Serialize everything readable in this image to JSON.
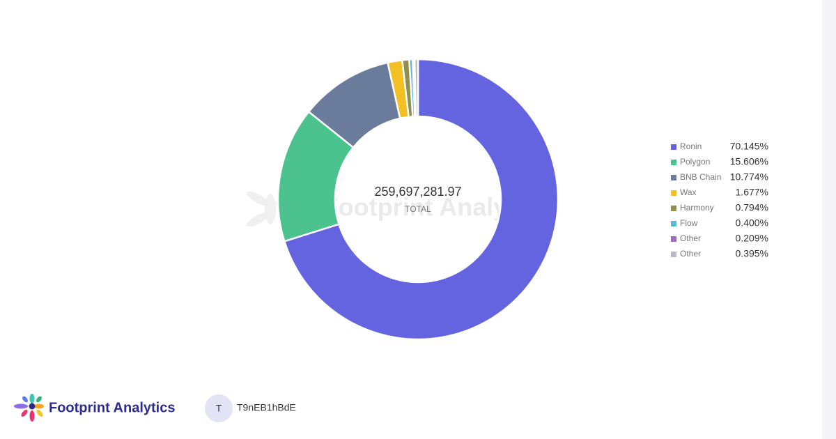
{
  "chart_data": {
    "type": "donut",
    "center_value": "259,697,281.97",
    "center_label": "TOTAL",
    "watermark": "Footprint Analytics",
    "categories": [
      "Ronin",
      "Polygon",
      "BNB Chain",
      "Wax",
      "Harmony",
      "Flow",
      "Other",
      "Other"
    ],
    "values": [
      70.145,
      15.606,
      10.774,
      1.677,
      0.794,
      0.4,
      0.209,
      0.395
    ],
    "value_labels": [
      "70.145%",
      "15.606%",
      "10.774%",
      "1.677%",
      "0.794%",
      "0.400%",
      "0.209%",
      "0.395%"
    ],
    "colors": [
      "#6464e0",
      "#4cc38f",
      "#6a7b9c",
      "#f2c025",
      "#8f9050",
      "#5fb8d8",
      "#9a6bbf",
      "#b9b9c9"
    ],
    "legend": "right"
  },
  "footer": {
    "brand": "Footprint Analytics",
    "avatar": "T",
    "user": "T9nEB1hBdE"
  }
}
